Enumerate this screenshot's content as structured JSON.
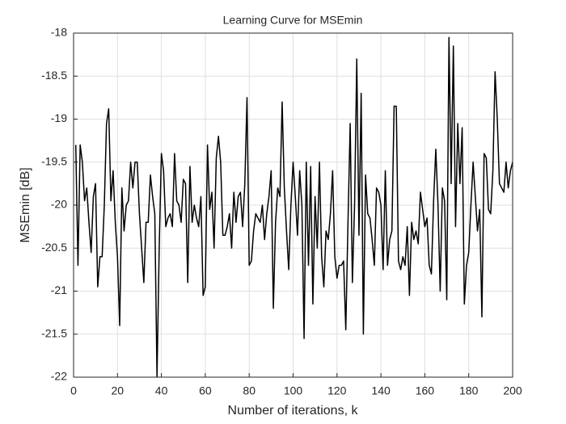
{
  "chart_data": {
    "type": "line",
    "title": "Learning Curve for MSEmin",
    "x_label": "Number of iterations, k",
    "y_label": "MSEmin [dB]",
    "x": [
      1,
      2,
      3,
      4,
      5,
      6,
      7,
      8,
      9,
      10,
      11,
      12,
      13,
      14,
      15,
      16,
      17,
      18,
      19,
      20,
      21,
      22,
      23,
      24,
      25,
      26,
      27,
      28,
      29,
      30,
      31,
      32,
      33,
      34,
      35,
      36,
      37,
      38,
      39,
      40,
      41,
      42,
      43,
      44,
      45,
      46,
      47,
      48,
      49,
      50,
      51,
      52,
      53,
      54,
      55,
      56,
      57,
      58,
      59,
      60,
      61,
      62,
      63,
      64,
      65,
      66,
      67,
      68,
      69,
      70,
      71,
      72,
      73,
      74,
      75,
      76,
      77,
      78,
      79,
      80,
      81,
      82,
      83,
      84,
      85,
      86,
      87,
      88,
      89,
      90,
      91,
      92,
      93,
      94,
      95,
      96,
      97,
      98,
      99,
      100,
      101,
      102,
      103,
      104,
      105,
      106,
      107,
      108,
      109,
      110,
      111,
      112,
      113,
      114,
      115,
      116,
      117,
      118,
      119,
      120,
      121,
      122,
      123,
      124,
      125,
      126,
      127,
      128,
      129,
      130,
      131,
      132,
      133,
      134,
      135,
      136,
      137,
      138,
      139,
      140,
      141,
      142,
      143,
      144,
      145,
      146,
      147,
      148,
      149,
      150,
      151,
      152,
      153,
      154,
      155,
      156,
      157,
      158,
      159,
      160,
      161,
      162,
      163,
      164,
      165,
      166,
      167,
      168,
      169,
      170,
      171,
      172,
      173,
      174,
      175,
      176,
      177,
      178,
      179,
      180,
      181,
      182,
      183,
      184,
      185,
      186,
      187,
      188,
      189,
      190,
      191,
      192,
      193,
      194,
      195,
      196,
      197,
      198,
      199,
      200
    ],
    "values": [
      -19.3,
      -20.7,
      -19.3,
      -19.5,
      -19.95,
      -19.8,
      -20.2,
      -20.55,
      -19.9,
      -19.75,
      -20.95,
      -20.6,
      -20.6,
      -20.0,
      -19.05,
      -18.88,
      -19.95,
      -19.6,
      -20.2,
      -20.6,
      -21.4,
      -19.8,
      -20.3,
      -20.0,
      -19.95,
      -19.5,
      -19.8,
      -19.5,
      -19.5,
      -20.1,
      -20.5,
      -20.9,
      -20.2,
      -20.2,
      -19.65,
      -19.9,
      -20.1,
      -22.0,
      -20.5,
      -19.4,
      -19.6,
      -20.25,
      -20.15,
      -20.1,
      -20.25,
      -19.4,
      -19.95,
      -20.0,
      -20.2,
      -19.7,
      -19.75,
      -20.9,
      -19.55,
      -20.2,
      -20.0,
      -20.15,
      -20.25,
      -19.9,
      -21.05,
      -20.95,
      -19.3,
      -20.05,
      -19.85,
      -20.5,
      -19.45,
      -19.2,
      -19.5,
      -20.35,
      -20.35,
      -20.25,
      -20.1,
      -20.5,
      -19.85,
      -20.2,
      -19.9,
      -19.85,
      -20.25,
      -19.75,
      -18.75,
      -20.7,
      -20.65,
      -20.3,
      -20.1,
      -20.15,
      -20.2,
      -20.0,
      -20.4,
      -20.1,
      -19.9,
      -19.6,
      -21.2,
      -20.2,
      -19.8,
      -19.9,
      -18.8,
      -19.8,
      -20.3,
      -20.75,
      -20.0,
      -19.5,
      -19.9,
      -20.35,
      -19.6,
      -20.0,
      -21.55,
      -19.5,
      -20.7,
      -19.55,
      -21.15,
      -19.9,
      -20.5,
      -19.5,
      -20.6,
      -20.95,
      -20.3,
      -20.4,
      -20.1,
      -19.6,
      -20.6,
      -20.85,
      -20.7,
      -20.7,
      -20.65,
      -21.45,
      -20.2,
      -19.05,
      -20.9,
      -20.0,
      -18.3,
      -20.35,
      -18.7,
      -21.5,
      -19.65,
      -20.1,
      -20.15,
      -20.4,
      -20.7,
      -19.8,
      -19.85,
      -20.0,
      -20.75,
      -19.6,
      -20.7,
      -20.4,
      -20.3,
      -18.85,
      -18.85,
      -20.65,
      -20.75,
      -20.6,
      -20.7,
      -20.25,
      -21.05,
      -20.2,
      -20.4,
      -20.3,
      -20.45,
      -19.85,
      -20.05,
      -20.25,
      -20.15,
      -20.7,
      -20.8,
      -19.95,
      -19.35,
      -20.0,
      -21.0,
      -19.8,
      -19.95,
      -21.1,
      -18.05,
      -19.75,
      -18.15,
      -20.25,
      -19.05,
      -19.75,
      -19.1,
      -21.15,
      -20.7,
      -20.55,
      -20.0,
      -19.5,
      -19.9,
      -20.3,
      -20.05,
      -21.3,
      -19.4,
      -19.45,
      -20.05,
      -20.1,
      -19.6,
      -18.45,
      -19.0,
      -19.75,
      -19.8,
      -19.85,
      -19.5,
      -19.8,
      -19.6,
      -19.5
    ],
    "color": "#000000",
    "xlim": [
      0,
      200
    ],
    "xticks": [
      0,
      20,
      40,
      60,
      80,
      100,
      120,
      140,
      160,
      180,
      200
    ],
    "ylim": [
      -22,
      -18
    ],
    "yticks": [
      -22,
      -21.5,
      -21,
      -20.5,
      -20,
      -19.5,
      -19,
      -18.5,
      -18
    ],
    "grid": true
  }
}
